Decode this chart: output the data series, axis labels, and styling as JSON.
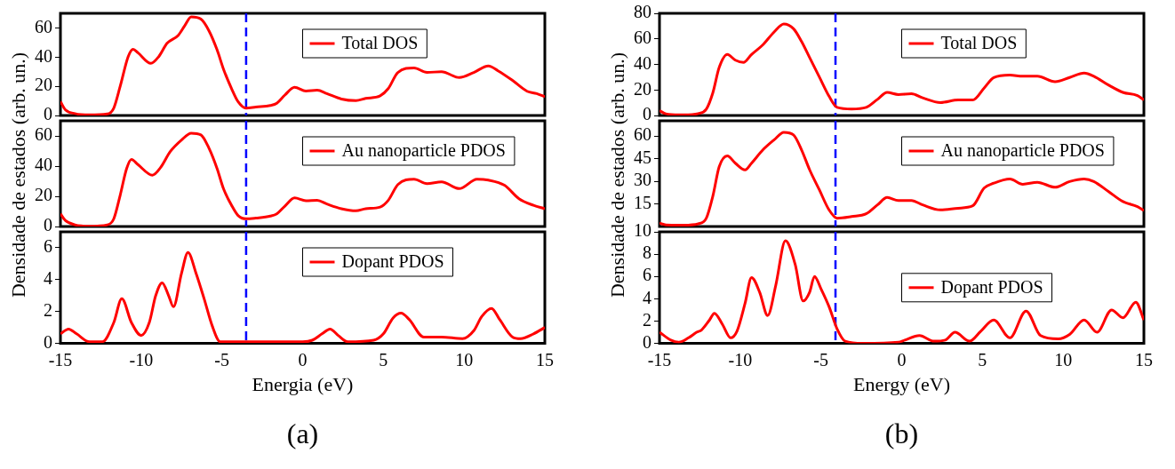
{
  "chart_data": [
    {
      "type": "line",
      "xlim": [
        -15,
        15
      ],
      "ylim": [
        0,
        70
      ],
      "yticks": [
        0,
        20,
        40,
        60
      ],
      "tick_labels": "y",
      "legend": "top right",
      "line_style": "solid",
      "marker": "none",
      "x": [
        -15,
        -14.7,
        -14.1,
        -13.2,
        -12.1,
        -11.7,
        -11.3,
        -10.8,
        -10.5,
        -10.2,
        -9.4,
        -8.9,
        -8.4,
        -7.7,
        -7.3,
        -6.9,
        -6.3,
        -5.8,
        -5.3,
        -4.9,
        -4.4,
        -4,
        -3.5,
        -2.9,
        -2,
        -1.6,
        -1.1,
        -0.5,
        0.2,
        0.9,
        1.5,
        2.4,
        3.3,
        3.9,
        4.8,
        5.3,
        5.9,
        6.9,
        7.7,
        8.6,
        9.7,
        10.6,
        11.5,
        12.1,
        13,
        13.9,
        14.5,
        15
      ],
      "series": [
        {
          "name": "Total DOS",
          "color": "#ff0000",
          "values": [
            9.5,
            4,
            1.3,
            0.4,
            1,
            5,
            20,
            40.5,
            45.4,
            43,
            35.7,
            40.5,
            49.4,
            55,
            61.6,
            67.5,
            66,
            58,
            45,
            31.7,
            18.4,
            9.5,
            5,
            5.8,
            6.9,
            8.4,
            14,
            19.3,
            16.8,
            17.3,
            15,
            11.3,
            10.2,
            11.7,
            13.5,
            18.4,
            29.5,
            32.6,
            29.5,
            30,
            26,
            29.5,
            33.9,
            30.6,
            24,
            16.6,
            15,
            12.8
          ]
        }
      ],
      "ref_lines": [
        {
          "axis": "x",
          "value": -3.5,
          "color": "#0000ff",
          "line_style": "dashed"
        }
      ]
    },
    {
      "type": "line",
      "xlim": [
        -15,
        15
      ],
      "ylim": [
        0,
        70
      ],
      "yticks": [
        0,
        20,
        40,
        60
      ],
      "tick_labels": "y",
      "legend": "top right",
      "line_style": "solid",
      "marker": "none",
      "ylabel": "Densidade de estados (arb. un.)",
      "x": [
        -15,
        -14.7,
        -14.1,
        -13.2,
        -12.1,
        -11.7,
        -11.3,
        -10.9,
        -10.6,
        -10.2,
        -9.3,
        -8.8,
        -8.2,
        -7.5,
        -6.9,
        -6.3,
        -5.8,
        -5.3,
        -4.9,
        -4.4,
        -4,
        -3.5,
        -2.9,
        -2,
        -1.6,
        -1.1,
        -0.5,
        0.2,
        0.9,
        1.5,
        2.4,
        3.3,
        3.9,
        4.8,
        5.3,
        5.9,
        6.9,
        7.7,
        8.6,
        9.7,
        10.8,
        11.5,
        12.5,
        13.4,
        14.3,
        15
      ],
      "series": [
        {
          "name": "Au nanoparticle PDOS",
          "color": "#ff0000",
          "values": [
            8.4,
            4,
            1.1,
            0.2,
            1.1,
            5,
            20.7,
            38.4,
            44.4,
            41,
            34,
            39,
            49.6,
            57.3,
            61.8,
            60.7,
            51.8,
            38.4,
            25,
            14,
            7.3,
            5.1,
            5.6,
            6.9,
            8.4,
            13.5,
            18.9,
            17.1,
            17.3,
            14.9,
            11.8,
            10.4,
            11.8,
            12.9,
            17.3,
            27.8,
            31.3,
            28.4,
            29.6,
            25.1,
            31.3,
            30.7,
            27.3,
            18.4,
            14,
            11.8
          ]
        }
      ],
      "ref_lines": [
        {
          "axis": "x",
          "value": -3.5,
          "color": "#0000ff",
          "line_style": "dashed"
        }
      ]
    },
    {
      "type": "line",
      "xlim": [
        -15,
        15
      ],
      "xticks": [
        -15,
        -10,
        -5,
        0,
        5,
        10,
        15
      ],
      "ylim": [
        0,
        7
      ],
      "yticks": [
        0,
        2,
        4,
        6
      ],
      "legend": "top right",
      "line_style": "solid",
      "marker": "none",
      "xlabel": "Energia (eV)",
      "annotations": [
        "(a)"
      ],
      "x": [
        -15,
        -14.5,
        -14,
        -13.2,
        -12.4,
        -11.7,
        -11.2,
        -10.6,
        -10,
        -9.5,
        -9.1,
        -8.7,
        -8.3,
        -8,
        -7.5,
        -7.1,
        -6.6,
        -6.1,
        -5.6,
        -5.1,
        -3.3,
        0,
        0.6,
        1.2,
        1.7,
        2.2,
        2.8,
        4.4,
        5,
        5.6,
        6.1,
        6.6,
        7.5,
        8.6,
        9.9,
        10.6,
        11.1,
        11.7,
        12.2,
        13,
        13.5,
        14.3,
        15
      ],
      "series": [
        {
          "name": "Dopant PDOS",
          "color": "#ff0000",
          "values": [
            0.6,
            0.9,
            0.6,
            0.1,
            0.1,
            1.3,
            2.8,
            1.3,
            0.5,
            1.3,
            3,
            3.8,
            3,
            2.3,
            4.4,
            5.7,
            4.4,
            2.8,
            1.1,
            0.1,
            0.1,
            0.1,
            0.2,
            0.6,
            0.9,
            0.5,
            0.1,
            0.2,
            0.6,
            1.6,
            1.9,
            1.5,
            0.4,
            0.4,
            0.3,
            0.8,
            1.7,
            2.2,
            1.5,
            0.4,
            0.3,
            0.6,
            1
          ]
        }
      ],
      "ref_lines": [
        {
          "axis": "x",
          "value": -3.5,
          "color": "#0000ff",
          "line_style": "dashed"
        }
      ]
    },
    {
      "type": "line",
      "xlim": [
        -15,
        15
      ],
      "ylim": [
        0,
        80
      ],
      "yticks": [
        0,
        20,
        40,
        60,
        80
      ],
      "tick_labels": "y",
      "legend": "top right",
      "line_style": "solid",
      "marker": "none",
      "x": [
        -15,
        -14.6,
        -13.5,
        -12.6,
        -12.1,
        -11.7,
        -11.3,
        -10.8,
        -10.3,
        -9.8,
        -9.3,
        -8.6,
        -7.9,
        -7.3,
        -6.7,
        -6.2,
        -5.7,
        -5.1,
        -4.5,
        -4,
        -3.1,
        -2.2,
        -1.5,
        -0.9,
        -0.2,
        0.6,
        1.3,
        2.4,
        3.5,
        4.4,
        5.1,
        5.7,
        6.7,
        7.5,
        8.4,
        9.5,
        10.4,
        11.3,
        11.9,
        12.8,
        13.7,
        14.6,
        15
      ],
      "series": [
        {
          "name": "Total DOS",
          "color": "#ff0000",
          "values": [
            3.8,
            1.3,
            0.5,
            1.5,
            5,
            17.6,
            37.7,
            47.8,
            43.3,
            41.5,
            47.8,
            55.3,
            65.4,
            71.7,
            67.9,
            57.9,
            45.3,
            30.2,
            15.1,
            6.3,
            5,
            6.3,
            12.6,
            18.1,
            16.4,
            17.1,
            13.8,
            10.1,
            12.1,
            12.1,
            21.4,
            29.7,
            31.7,
            30.7,
            30.7,
            26.4,
            29.7,
            33.2,
            30.7,
            23.9,
            18.1,
            15.6,
            12.1
          ]
        }
      ],
      "ref_lines": [
        {
          "axis": "x",
          "value": -4.1,
          "color": "#0000ff",
          "line_style": "dashed"
        }
      ]
    },
    {
      "type": "line",
      "xlim": [
        -15,
        15
      ],
      "ylim": [
        0,
        70
      ],
      "yticks": [
        15,
        30,
        45,
        60
      ],
      "tick_labels": "y",
      "legend": "top right",
      "line_style": "solid",
      "marker": "none",
      "ylabel": "Densidade de estados (arb. un.)",
      "x": [
        -15,
        -14.6,
        -13.5,
        -12.6,
        -12.1,
        -11.7,
        -11.3,
        -10.8,
        -10.3,
        -9.7,
        -9.3,
        -8.6,
        -7.9,
        -7.3,
        -6.7,
        -6.2,
        -5.7,
        -5.1,
        -4.5,
        -4,
        -3.1,
        -2.2,
        -1.5,
        -0.9,
        -0.2,
        0.6,
        1.3,
        2.4,
        3.5,
        4.4,
        5.1,
        5.7,
        6.7,
        7.5,
        8.4,
        9.5,
        10.4,
        11.3,
        11.9,
        12.8,
        13.7,
        14.6,
        15
      ],
      "series": [
        {
          "name": "Au nanoparticle PDOS",
          "color": "#ff0000",
          "values": [
            2.2,
            1.1,
            0.9,
            1.8,
            5.5,
            19.9,
            39.7,
            46.8,
            41.9,
            37.5,
            41.9,
            50.7,
            57.4,
            62.4,
            60.7,
            50.7,
            37.5,
            24.3,
            11,
            5.5,
            6.6,
            8.4,
            14.3,
            19.2,
            17.2,
            17.2,
            14.3,
            11,
            12.1,
            13.7,
            25.4,
            28.7,
            31.5,
            28,
            29.3,
            26,
            29.8,
            31.5,
            29.8,
            23.2,
            16.5,
            13.2,
            10.6
          ]
        }
      ],
      "ref_lines": [
        {
          "axis": "x",
          "value": -4.1,
          "color": "#0000ff",
          "line_style": "dashed"
        }
      ]
    },
    {
      "type": "line",
      "xlim": [
        -15,
        15
      ],
      "xticks": [
        -15,
        -10,
        -5,
        0,
        5,
        10,
        15
      ],
      "ylim": [
        0,
        10
      ],
      "yticks": [
        0,
        2,
        4,
        6,
        8,
        10
      ],
      "legend": "right",
      "line_style": "solid",
      "marker": "none",
      "xlabel": "Energy (eV)",
      "annotations": [
        "(b)"
      ],
      "x": [
        -15,
        -14.3,
        -13.8,
        -13.2,
        -12.7,
        -12.4,
        -11.9,
        -11.6,
        -11.1,
        -10.6,
        -10.2,
        -9.7,
        -9.3,
        -8.8,
        -8.3,
        -7.8,
        -7.2,
        -6.6,
        -6.1,
        -5.7,
        -5.4,
        -5,
        -4.5,
        -4,
        -3.5,
        -2.4,
        -0.2,
        0.2,
        1.1,
        2,
        2.7,
        3.3,
        4.2,
        4.9,
        5.7,
        6.7,
        7.7,
        8.6,
        9.7,
        10.4,
        11.3,
        12.1,
        13,
        13.7,
        14.5,
        15
      ],
      "series": [
        {
          "name": "Dopant PDOS",
          "color": "#ff0000",
          "values": [
            1,
            0.3,
            0.1,
            0.5,
            1,
            1.2,
            2.1,
            2.7,
            1.7,
            0.5,
            1.1,
            3.6,
            5.9,
            4.6,
            2.5,
            5.2,
            9.2,
            7.1,
            3.8,
            4.6,
            6,
            4.9,
            3.3,
            1.3,
            0.2,
            0,
            0.1,
            0.3,
            0.7,
            0.2,
            0.3,
            1,
            0.2,
            1.1,
            2.1,
            0.5,
            2.9,
            0.7,
            0.4,
            0.8,
            2.1,
            1,
            3,
            2.3,
            3.7,
            2.1
          ]
        }
      ],
      "ref_lines": [
        {
          "axis": "x",
          "value": -4.1,
          "color": "#0000ff",
          "line_style": "dashed"
        }
      ]
    }
  ]
}
